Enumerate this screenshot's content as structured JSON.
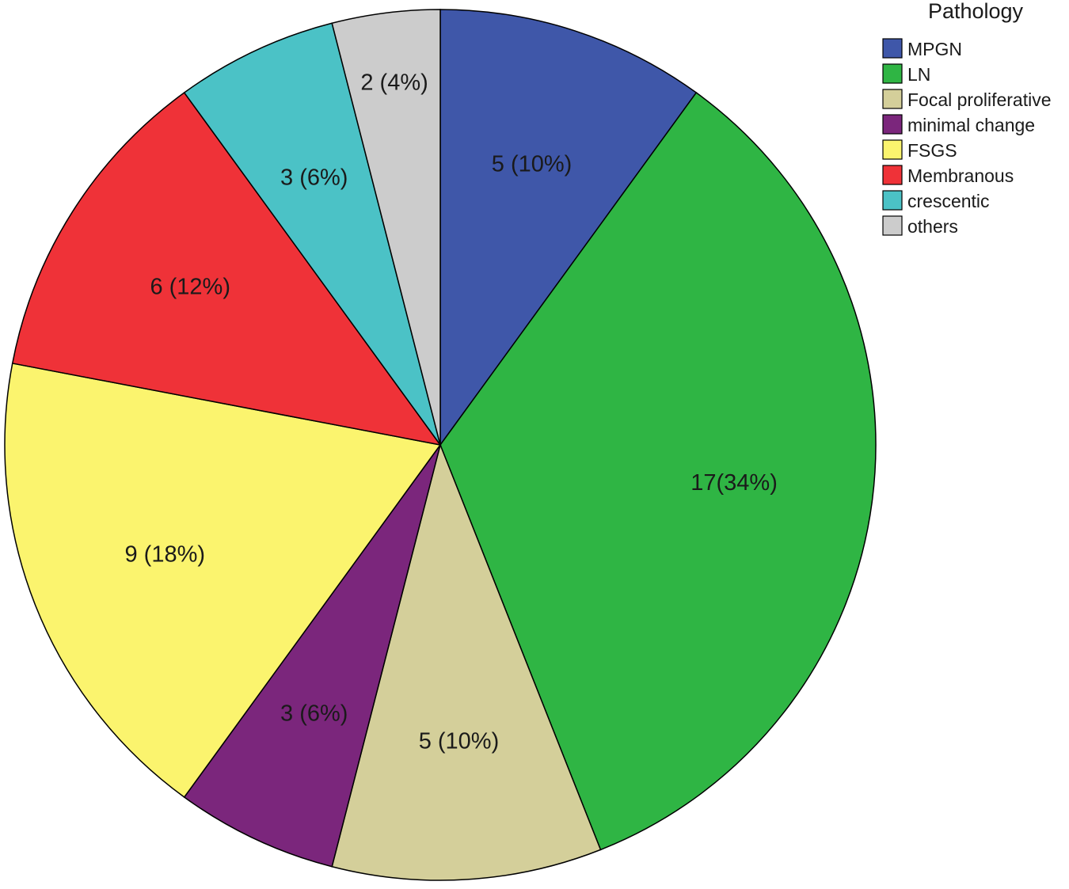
{
  "chart_data": {
    "type": "pie",
    "legend_title": "Pathology",
    "legend_position": "top-right",
    "start_angle": "12 o'clock",
    "direction": "clockwise",
    "slices": [
      {
        "name": "MPGN",
        "value": 5,
        "label": "5 (10%)",
        "color": "#3f57a9"
      },
      {
        "name": "LN",
        "value": 17,
        "label": "17(34%)",
        "color": "#2fb544"
      },
      {
        "name": "Focal proliferative",
        "value": 5,
        "label": "5 (10%)",
        "color": "#d4cf9a"
      },
      {
        "name": "minimal change",
        "value": 3,
        "label": "3 (6%)",
        "color": "#7b267c"
      },
      {
        "name": "FSGS",
        "value": 9,
        "label": "9 (18%)",
        "color": "#fbf46e"
      },
      {
        "name": "Membranous",
        "value": 6,
        "label": "6 (12%)",
        "color": "#ef3238"
      },
      {
        "name": "crescentic",
        "value": 3,
        "label": "3 (6%)",
        "color": "#4bc2c6"
      },
      {
        "name": "others",
        "value": 2,
        "label": "2 (4%)",
        "color": "#cccccc"
      }
    ]
  }
}
